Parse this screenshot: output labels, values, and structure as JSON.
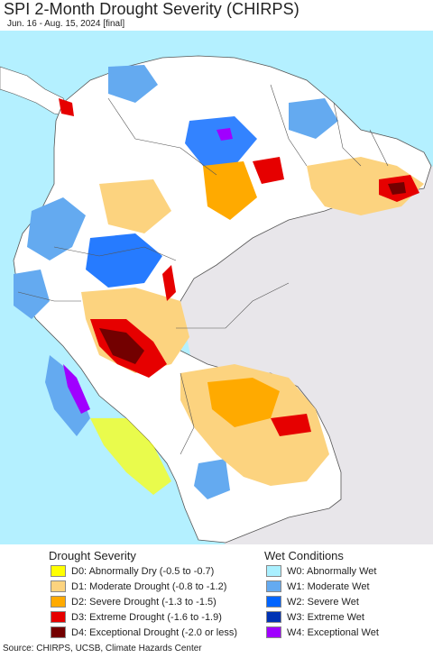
{
  "header": {
    "title": "SPI 2-Month Drought Severity (CHIRPS)",
    "subtitle": "Jun. 16 - Aug. 15, 2024 [final]"
  },
  "legend": {
    "drought": {
      "title": "Drought Severity",
      "items": [
        {
          "code": "D0",
          "label": "D0: Abnormally Dry (-0.5 to -0.7)",
          "color": "#ffff00"
        },
        {
          "code": "D1",
          "label": "D1: Moderate Drought (-0.8 to -1.2)",
          "color": "#fcd37f"
        },
        {
          "code": "D2",
          "label": "D2: Severe Drought (-1.3 to -1.5)",
          "color": "#ffaa00"
        },
        {
          "code": "D3",
          "label": "D3: Extreme Drought (-1.6 to -1.9)",
          "color": "#e60000"
        },
        {
          "code": "D4",
          "label": "D4: Exceptional Drought (-2.0 or less)",
          "color": "#730000"
        }
      ]
    },
    "wet": {
      "title": "Wet Conditions",
      "items": [
        {
          "code": "W0",
          "label": "W0: Abnormally Wet",
          "color": "#aaf0ff"
        },
        {
          "code": "W1",
          "label": "W1: Moderate Wet",
          "color": "#64aaf0"
        },
        {
          "code": "W2",
          "label": "W2: Severe Wet",
          "color": "#0064ff"
        },
        {
          "code": "W3",
          "label": "W3: Extreme Wet",
          "color": "#0032b4"
        },
        {
          "code": "W4",
          "label": "W4: Exceptional Wet",
          "color": "#a000ff"
        }
      ]
    }
  },
  "map": {
    "ocean_color": "#b4f0ff",
    "outside_land_color": "#e8e6ea",
    "border_color": "#555555"
  },
  "footer": {
    "source": "Source: CHIRPS, UCSB, Climate Hazards Center"
  }
}
